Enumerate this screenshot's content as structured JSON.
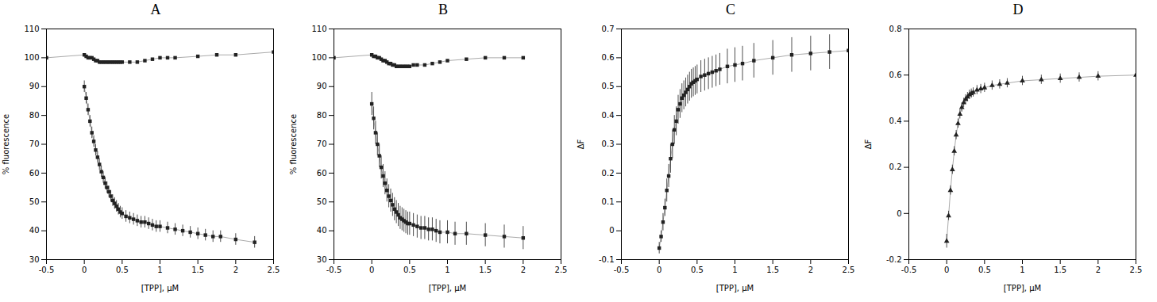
{
  "chart_data": [
    {
      "type": "line",
      "title": "A",
      "x_label": "[TPP], μM",
      "y_label": "% fluorescence",
      "xlim": [
        -0.5,
        2.5
      ],
      "xticks": [
        -0.5,
        0,
        0.5,
        1,
        1.5,
        2,
        2.5
      ],
      "ylim": [
        30,
        110
      ],
      "yticks": [
        30,
        40,
        50,
        60,
        70,
        80,
        90,
        100,
        110
      ],
      "color": "#aaaaaa",
      "series": [
        {
          "color": "#222222",
          "marker": "square",
          "x": [
            -0.5,
            0,
            0.025,
            0.05,
            0.075,
            0.1,
            0.125,
            0.15,
            0.175,
            0.2,
            0.225,
            0.25,
            0.275,
            0.3,
            0.325,
            0.35,
            0.375,
            0.4,
            0.425,
            0.45,
            0.475,
            0.5,
            0.6,
            0.7,
            0.8,
            0.9,
            1.0,
            1.1,
            1.2,
            1.5,
            1.75,
            2.0,
            2.5
          ],
          "values": [
            100,
            101,
            100.5,
            100,
            100,
            100,
            99.5,
            99,
            99,
            98.5,
            98.5,
            98.5,
            98.5,
            98.5,
            98.5,
            98.5,
            98.5,
            98.5,
            98.5,
            98.5,
            98.5,
            98.5,
            98.5,
            98.5,
            99,
            99.5,
            100,
            100,
            100,
            100.5,
            101,
            101,
            102
          ],
          "errors": [
            0.3,
            0.3,
            0.3,
            0.3,
            0.3,
            0.3,
            0.3,
            0.3,
            0.3,
            0.3,
            0.3,
            0.3,
            0.3,
            0.3,
            0.3,
            0.3,
            0.3,
            0.3,
            0.3,
            0.3,
            0.3,
            0.3,
            0.3,
            0.3,
            0.3,
            0.3,
            0.3,
            0.3,
            0.3,
            0.3,
            0.3,
            0.3,
            0.3
          ]
        },
        {
          "color": "#222222",
          "marker": "square",
          "x": [
            0,
            0.025,
            0.05,
            0.075,
            0.1,
            0.125,
            0.15,
            0.175,
            0.2,
            0.225,
            0.25,
            0.275,
            0.3,
            0.325,
            0.35,
            0.375,
            0.4,
            0.425,
            0.45,
            0.475,
            0.5,
            0.55,
            0.6,
            0.65,
            0.7,
            0.75,
            0.8,
            0.85,
            0.9,
            0.95,
            1.0,
            1.1,
            1.2,
            1.3,
            1.4,
            1.5,
            1.6,
            1.7,
            1.8,
            2.0,
            2.25
          ],
          "values": [
            90,
            86,
            82,
            78,
            74,
            71,
            68,
            65.5,
            63,
            60.5,
            58.5,
            56.5,
            55,
            53.5,
            52,
            50.5,
            49.5,
            48.5,
            47.5,
            46.5,
            46,
            45,
            44.5,
            44,
            43.5,
            43,
            43,
            42.5,
            42,
            41.5,
            41.5,
            41,
            40.5,
            40,
            39.5,
            39,
            38.5,
            38,
            38,
            37,
            36
          ],
          "errors": [
            2,
            2,
            2,
            2,
            2,
            2,
            2,
            2,
            2,
            2,
            2,
            2,
            2,
            2,
            2,
            2,
            2,
            2,
            2,
            2,
            2,
            2,
            2,
            2,
            2,
            2,
            2,
            2,
            2,
            2,
            2,
            2,
            2,
            2,
            2,
            2,
            2,
            2,
            2,
            2,
            2
          ]
        }
      ]
    },
    {
      "type": "line",
      "title": "B",
      "x_label": "[TPP], μM",
      "y_label": "% fluorescence",
      "xlim": [
        -0.5,
        2.5
      ],
      "xticks": [
        -0.5,
        0,
        0.5,
        1,
        1.5,
        2,
        2.5
      ],
      "ylim": [
        30,
        110
      ],
      "yticks": [
        30,
        40,
        50,
        60,
        70,
        80,
        90,
        100,
        110
      ],
      "color": "#aaaaaa",
      "series": [
        {
          "color": "#222222",
          "marker": "square",
          "x": [
            -0.5,
            0,
            0.025,
            0.05,
            0.075,
            0.1,
            0.125,
            0.15,
            0.175,
            0.2,
            0.225,
            0.25,
            0.275,
            0.3,
            0.325,
            0.35,
            0.375,
            0.4,
            0.425,
            0.45,
            0.475,
            0.5,
            0.55,
            0.6,
            0.7,
            0.8,
            0.9,
            1.0,
            1.25,
            1.5,
            1.75,
            2.0
          ],
          "values": [
            100,
            101,
            100.5,
            100.5,
            100,
            100,
            99.5,
            99,
            99,
            98.5,
            98,
            98,
            97.5,
            97.5,
            97,
            97,
            97,
            97,
            97,
            97,
            97,
            97,
            97.5,
            97.5,
            97.5,
            98,
            98.5,
            99,
            99.5,
            100,
            100,
            100
          ],
          "errors": [
            0.3,
            0.3,
            0.3,
            0.3,
            0.3,
            0.3,
            0.3,
            0.3,
            0.3,
            0.3,
            0.3,
            0.3,
            0.3,
            0.3,
            0.3,
            0.3,
            0.3,
            0.3,
            0.3,
            0.3,
            0.3,
            0.3,
            0.3,
            0.3,
            0.3,
            0.3,
            0.3,
            0.3,
            0.3,
            0.3,
            0.3,
            0.3
          ]
        },
        {
          "color": "#222222",
          "marker": "square",
          "x": [
            0,
            0.025,
            0.05,
            0.075,
            0.1,
            0.125,
            0.15,
            0.175,
            0.2,
            0.225,
            0.25,
            0.275,
            0.3,
            0.325,
            0.35,
            0.375,
            0.4,
            0.425,
            0.45,
            0.475,
            0.5,
            0.55,
            0.6,
            0.65,
            0.7,
            0.75,
            0.8,
            0.85,
            0.9,
            1.0,
            1.1,
            1.25,
            1.5,
            1.75,
            2.0
          ],
          "values": [
            84,
            79,
            74,
            70,
            66,
            62,
            59,
            56.5,
            54,
            52,
            50.5,
            49,
            47.5,
            46.5,
            45.5,
            44.5,
            44,
            43.5,
            43,
            42.5,
            42.5,
            42,
            41.5,
            41,
            41,
            40.5,
            40.5,
            40,
            39.5,
            39.5,
            39,
            39,
            38.5,
            38,
            37.5
          ],
          "errors": [
            4,
            4,
            4,
            4,
            4,
            4,
            4,
            4,
            4,
            4,
            4,
            4,
            4,
            4,
            4,
            4,
            4,
            4,
            4,
            4,
            4,
            4,
            4,
            4,
            4,
            4,
            4,
            4,
            4,
            4,
            4,
            4,
            4,
            4,
            4
          ]
        }
      ]
    },
    {
      "type": "line",
      "title": "C",
      "x_label": "[TPP], μM",
      "y_label": "ΔF",
      "xlim": [
        -0.5,
        2.5
      ],
      "xticks": [
        -0.5,
        0,
        0.5,
        1,
        1.5,
        2,
        2.5
      ],
      "ylim": [
        -0.1,
        0.7
      ],
      "yticks": [
        -0.1,
        0,
        0.1,
        0.2,
        0.3,
        0.4,
        0.5,
        0.6,
        0.7
      ],
      "color": "#aaaaaa",
      "series": [
        {
          "color": "#222222",
          "marker": "square",
          "x": [
            0,
            0.025,
            0.05,
            0.075,
            0.1,
            0.125,
            0.15,
            0.175,
            0.2,
            0.225,
            0.25,
            0.275,
            0.3,
            0.325,
            0.35,
            0.375,
            0.4,
            0.425,
            0.45,
            0.475,
            0.5,
            0.55,
            0.6,
            0.65,
            0.7,
            0.75,
            0.8,
            0.9,
            1.0,
            1.1,
            1.25,
            1.5,
            1.75,
            2.0,
            2.25,
            2.5
          ],
          "values": [
            -0.06,
            -0.02,
            0.03,
            0.08,
            0.14,
            0.19,
            0.25,
            0.3,
            0.35,
            0.38,
            0.42,
            0.44,
            0.46,
            0.47,
            0.48,
            0.49,
            0.5,
            0.51,
            0.515,
            0.52,
            0.525,
            0.535,
            0.54,
            0.545,
            0.55,
            0.555,
            0.56,
            0.57,
            0.575,
            0.58,
            0.59,
            0.6,
            0.61,
            0.615,
            0.62,
            0.625
          ],
          "errors": [
            0.02,
            0.02,
            0.03,
            0.03,
            0.04,
            0.04,
            0.05,
            0.05,
            0.05,
            0.05,
            0.05,
            0.05,
            0.05,
            0.05,
            0.05,
            0.05,
            0.05,
            0.05,
            0.05,
            0.05,
            0.05,
            0.055,
            0.055,
            0.055,
            0.055,
            0.055,
            0.055,
            0.06,
            0.06,
            0.06,
            0.06,
            0.06,
            0.06,
            0.06,
            0.06,
            0.06
          ]
        }
      ]
    },
    {
      "type": "line",
      "title": "D",
      "x_label": "[TPP], μM",
      "y_label": "ΔF",
      "xlim": [
        -0.5,
        2.5
      ],
      "xticks": [
        -0.5,
        0,
        0.5,
        1,
        1.5,
        2,
        2.5
      ],
      "ylim": [
        -0.2,
        0.8
      ],
      "yticks": [
        -0.2,
        0,
        0.2,
        0.4,
        0.6,
        0.8
      ],
      "color": "#aaaaaa",
      "series": [
        {
          "color": "#222222",
          "marker": "triangle",
          "x": [
            0,
            0.025,
            0.05,
            0.075,
            0.1,
            0.125,
            0.15,
            0.175,
            0.2,
            0.225,
            0.25,
            0.275,
            0.3,
            0.325,
            0.35,
            0.4,
            0.45,
            0.5,
            0.6,
            0.7,
            0.8,
            1.0,
            1.25,
            1.5,
            1.75,
            2.0,
            2.5
          ],
          "values": [
            -0.12,
            -0.01,
            0.1,
            0.19,
            0.27,
            0.34,
            0.39,
            0.43,
            0.46,
            0.48,
            0.495,
            0.505,
            0.515,
            0.52,
            0.525,
            0.535,
            0.54,
            0.545,
            0.555,
            0.56,
            0.565,
            0.575,
            0.58,
            0.585,
            0.59,
            0.595,
            0.6
          ],
          "errors": [
            0.03,
            0.02,
            0.02,
            0.02,
            0.02,
            0.02,
            0.02,
            0.02,
            0.02,
            0.02,
            0.02,
            0.02,
            0.02,
            0.02,
            0.02,
            0.02,
            0.02,
            0.02,
            0.02,
            0.02,
            0.02,
            0.02,
            0.02,
            0.02,
            0.02,
            0.02,
            0.02
          ]
        }
      ]
    }
  ]
}
